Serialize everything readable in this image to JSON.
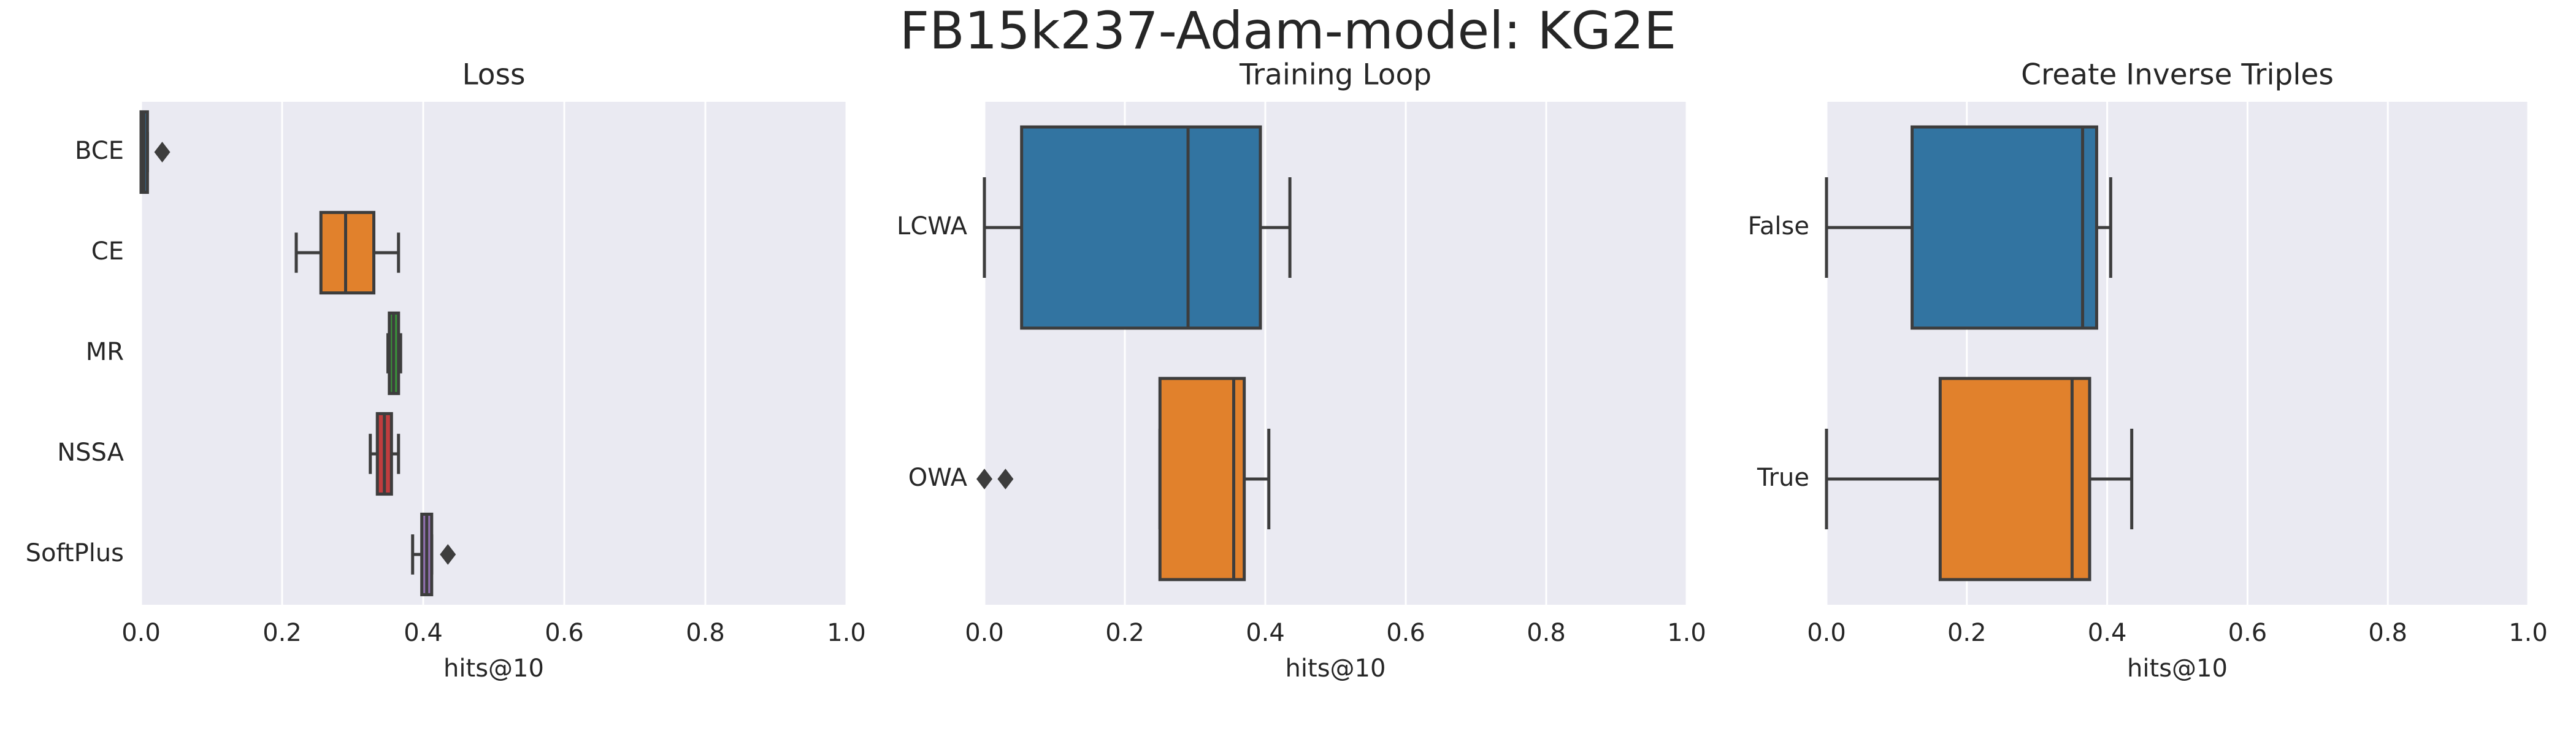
{
  "title": "FB15k237-Adam-model: KG2E",
  "chart_data": [
    {
      "type": "box",
      "title": "Loss",
      "xlabel": "hits@10",
      "categories": [
        "BCE",
        "CE",
        "MR",
        "NSSA",
        "SoftPlus"
      ],
      "colors": [
        "#3274a1",
        "#e1812c",
        "#3a923a",
        "#c03d3e",
        "#9372b2"
      ],
      "boxes": [
        {
          "min": 0.0,
          "q1": 0.0,
          "median": 0.004,
          "q3": 0.009,
          "max": 0.009,
          "outliers": [
            0.03
          ]
        },
        {
          "min": 0.22,
          "q1": 0.255,
          "median": 0.29,
          "q3": 0.33,
          "max": 0.365
        },
        {
          "min": 0.35,
          "q1": 0.352,
          "median": 0.358,
          "q3": 0.365,
          "max": 0.368
        },
        {
          "min": 0.325,
          "q1": 0.335,
          "median": 0.345,
          "q3": 0.355,
          "max": 0.365
        },
        {
          "min": 0.385,
          "q1": 0.398,
          "median": 0.405,
          "q3": 0.412,
          "max": 0.412,
          "outliers": [
            0.435
          ]
        }
      ],
      "xlim": [
        0,
        1
      ],
      "xticks": [
        {
          "value": 0,
          "label": "0.0"
        },
        0.2,
        0.4,
        0.6,
        0.8,
        {
          "value": 1,
          "label": "1.0"
        }
      ],
      "grid": true
    },
    {
      "type": "box",
      "title": "Training Loop",
      "xlabel": "hits@10",
      "categories": [
        "LCWA",
        "OWA"
      ],
      "colors": [
        "#3274a1",
        "#e1812c"
      ],
      "boxes": [
        {
          "min": 0.0,
          "q1": 0.053,
          "median": 0.29,
          "q3": 0.393,
          "max": 0.435
        },
        {
          "min": 0.25,
          "q1": 0.25,
          "median": 0.355,
          "q3": 0.37,
          "max": 0.405,
          "outliers": [
            0.0,
            0.03
          ]
        }
      ],
      "xlim": [
        0,
        1
      ],
      "xticks": [
        {
          "value": 0,
          "label": "0.0"
        },
        0.2,
        0.4,
        0.6,
        0.8,
        {
          "value": 1,
          "label": "1.0"
        }
      ],
      "grid": true
    },
    {
      "type": "box",
      "title": "Create Inverse Triples",
      "xlabel": "hits@10",
      "categories": [
        "False",
        "True"
      ],
      "colors": [
        "#3274a1",
        "#e1812c"
      ],
      "boxes": [
        {
          "min": 0.0,
          "q1": 0.122,
          "median": 0.365,
          "q3": 0.385,
          "max": 0.405
        },
        {
          "min": 0.0,
          "q1": 0.162,
          "median": 0.35,
          "q3": 0.375,
          "max": 0.435
        }
      ],
      "xlim": [
        0,
        1
      ],
      "xticks": [
        {
          "value": 0,
          "label": "0.0"
        },
        0.2,
        0.4,
        0.6,
        0.8,
        {
          "value": 1,
          "label": "1.0"
        }
      ],
      "grid": true
    }
  ]
}
